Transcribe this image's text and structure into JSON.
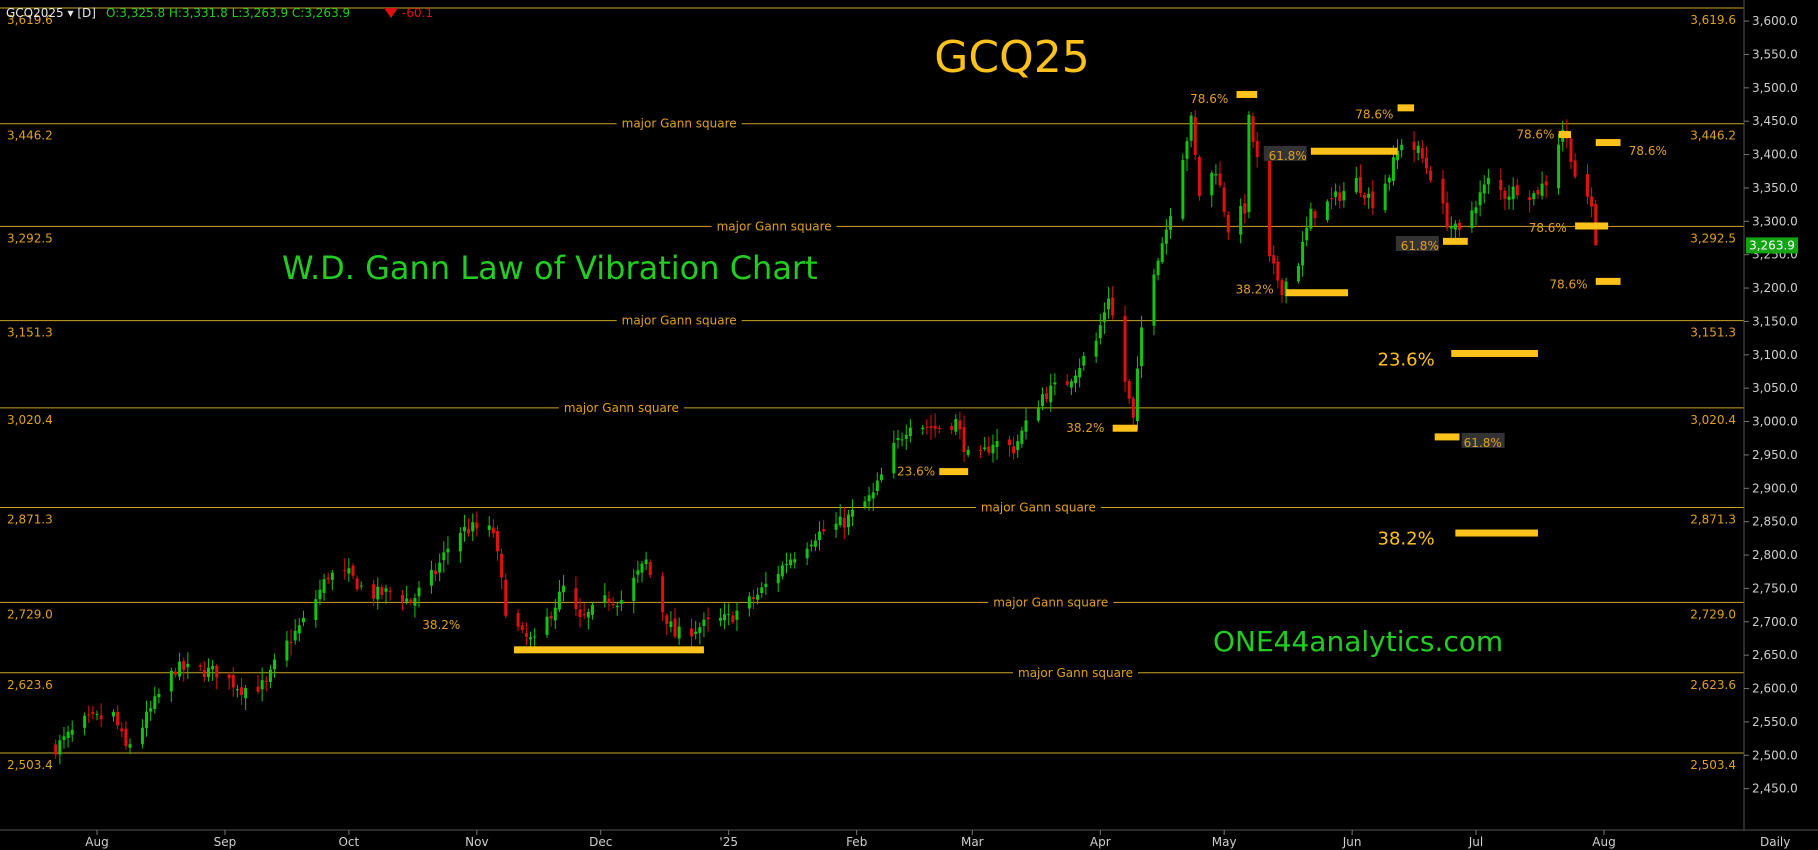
{
  "header": {
    "symbol": "GCQ2025 ▾ [D]",
    "ohlc": "O:3,325.8 H:3,331.8 L:3,263.9 C:3,263.9",
    "change": "-60.1"
  },
  "colors": {
    "background": "#000000",
    "up": "#13c313",
    "down": "#e01010",
    "level_line": "#c9a227",
    "annotation": "#ffc21a",
    "fib_text": "#e0a020",
    "green_text": "#22cc22",
    "axis_text": "#cfcfcf",
    "price_tag": "#13a313"
  },
  "chart_data": {
    "type": "candlestick",
    "title": "GCQ25",
    "subtitle": "W.D. Gann Law of Vibration Chart",
    "watermark": "ONE44analytics.com",
    "interval_label": "Daily",
    "ylim": [
      2410,
      3630
    ],
    "y_ticks": [
      2450,
      2500,
      2550,
      2600,
      2650,
      2700,
      2750,
      2800,
      2850,
      2900,
      2950,
      3000,
      3050,
      3100,
      3150,
      3200,
      3250,
      3300,
      3350,
      3400,
      3450,
      3500,
      3550,
      3600
    ],
    "x_range": [
      "2024-07-22",
      "2025-08-26"
    ],
    "x_ticks": [
      {
        "label": "Aug",
        "date": "2024-08-01"
      },
      {
        "label": "Sep",
        "date": "2024-09-01"
      },
      {
        "label": "Oct",
        "date": "2024-10-01"
      },
      {
        "label": "Nov",
        "date": "2024-11-01"
      },
      {
        "label": "Dec",
        "date": "2024-12-01"
      },
      {
        "label": "'25",
        "date": "2025-01-01"
      },
      {
        "label": "Feb",
        "date": "2025-02-01"
      },
      {
        "label": "Mar",
        "date": "2025-03-01"
      },
      {
        "label": "Apr",
        "date": "2025-04-01"
      },
      {
        "label": "May",
        "date": "2025-05-01"
      },
      {
        "label": "Jun",
        "date": "2025-06-01"
      },
      {
        "label": "Jul",
        "date": "2025-07-01"
      },
      {
        "label": "Aug",
        "date": "2025-08-01"
      }
    ],
    "last_price_tag": {
      "value": 3263.9,
      "label": "3,263.9"
    },
    "levels": [
      {
        "value": 3619.6,
        "label": "3,619.6",
        "name": ""
      },
      {
        "value": 3446.2,
        "label": "3,446.2",
        "name": "major Gann square",
        "name_date": "2024-12-20"
      },
      {
        "value": 3292.5,
        "label": "3,292.5",
        "name": "major Gann square",
        "name_date": "2025-01-12"
      },
      {
        "value": 3151.3,
        "label": "3,151.3",
        "name": "major Gann square",
        "name_date": "2024-12-20"
      },
      {
        "value": 3020.4,
        "label": "3,020.4",
        "name": "major Gann square",
        "name_date": "2024-12-06"
      },
      {
        "value": 2871.3,
        "label": "2,871.3",
        "name": "major Gann square",
        "name_date": "2025-03-17"
      },
      {
        "value": 2729.0,
        "label": "2,729.0",
        "name": "major Gann square",
        "name_date": "2025-03-20"
      },
      {
        "value": 2623.6,
        "label": "2,623.6",
        "name": "major Gann square",
        "name_date": "2025-03-26"
      },
      {
        "value": 2503.4,
        "label": "2,503.4",
        "name": ""
      }
    ],
    "fib_markers": [
      {
        "label": "38.2%",
        "x1": "2024-11-10",
        "x2": "2024-12-26",
        "y": 2658,
        "label_date": "2024-10-28",
        "label_y": 2695,
        "label_side": "left",
        "big": false
      },
      {
        "label": "23.6%",
        "x1": "2025-02-21",
        "x2": "2025-02-28",
        "y": 2925,
        "label_date": "2025-02-20",
        "label_y": 2925,
        "label_side": "left",
        "big": false
      },
      {
        "label": "38.2%",
        "x1": "2025-04-04",
        "x2": "2025-04-10",
        "y": 2990,
        "label_date": "2025-04-02",
        "label_y": 2990,
        "label_side": "left",
        "big": false
      },
      {
        "label": "38.2%",
        "x1": "2025-05-16",
        "x2": "2025-05-31",
        "y": 3193,
        "label_date": "2025-05-13",
        "label_y": 3198,
        "label_side": "left",
        "big": false
      },
      {
        "label": "78.6%",
        "x1": "2025-05-04",
        "x2": "2025-05-09",
        "y": 3490,
        "label_date": "2025-05-02",
        "label_y": 3483,
        "label_side": "left",
        "big": false
      },
      {
        "label": "61.8%",
        "x1": "2025-05-22",
        "x2": "2025-06-12",
        "y": 3405,
        "label_date": "2025-05-21",
        "label_y": 3398,
        "label_side": "left",
        "big": false,
        "boxed": true
      },
      {
        "label": "78.6%",
        "x1": "2025-06-12",
        "x2": "2025-06-16",
        "y": 3470,
        "label_date": "2025-06-11",
        "label_y": 3460,
        "label_side": "left",
        "big": false
      },
      {
        "label": "61.8%",
        "x1": "2025-06-23",
        "x2": "2025-06-29",
        "y": 3270,
        "label_date": "2025-06-22",
        "label_y": 3263,
        "label_side": "left",
        "big": false,
        "boxed": true
      },
      {
        "label": "78.6%",
        "x1": "2025-07-21",
        "x2": "2025-07-24",
        "y": 3430,
        "label_date": "2025-07-20",
        "label_y": 3430,
        "label_side": "left",
        "big": false
      },
      {
        "label": "78.6%",
        "x1": "2025-07-25",
        "x2": "2025-08-02",
        "y": 3293,
        "label_date": "2025-07-23",
        "label_y": 3290,
        "label_side": "left",
        "big": false
      },
      {
        "label": "78.6%",
        "x1": "2025-07-30",
        "x2": "2025-08-05",
        "y": 3418,
        "label_date": "2025-08-07",
        "label_y": 3405,
        "label_side": "right",
        "big": false
      },
      {
        "label": "78.6%",
        "x1": "2025-07-30",
        "x2": "2025-08-05",
        "y": 3210,
        "label_date": "2025-07-28",
        "label_y": 3205,
        "label_side": "left",
        "big": false
      },
      {
        "label": "23.6%",
        "x1": "2025-06-25",
        "x2": "2025-07-16",
        "y": 3102,
        "label_date": "2025-06-21",
        "label_y": 3090,
        "label_side": "left",
        "big": true
      },
      {
        "label": "61.8%",
        "x1": "2025-06-21",
        "x2": "2025-06-27",
        "y": 2977,
        "label_date": "2025-06-28",
        "label_y": 2968,
        "label_side": "right",
        "big": false,
        "boxed": true
      },
      {
        "label": "38.2%",
        "x1": "2025-06-26",
        "x2": "2025-07-16",
        "y": 2833,
        "label_date": "2025-06-21",
        "label_y": 2822,
        "label_side": "left",
        "big": true
      }
    ],
    "series_shape": [
      [
        "2024-07-22",
        2512
      ],
      [
        "2024-07-29",
        2550
      ],
      [
        "2024-08-05",
        2560
      ],
      [
        "2024-08-08",
        2510
      ],
      [
        "2024-08-12",
        2545
      ],
      [
        "2024-08-16",
        2590
      ],
      [
        "2024-08-20",
        2630
      ],
      [
        "2024-08-30",
        2625
      ],
      [
        "2024-09-05",
        2600
      ],
      [
        "2024-09-11",
        2605
      ],
      [
        "2024-09-14",
        2650
      ],
      [
        "2024-09-20",
        2700
      ],
      [
        "2024-09-26",
        2770
      ],
      [
        "2024-10-01",
        2770
      ],
      [
        "2024-10-06",
        2740
      ],
      [
        "2024-10-12",
        2745
      ],
      [
        "2024-10-16",
        2730
      ],
      [
        "2024-10-22",
        2775
      ],
      [
        "2024-10-27",
        2835
      ],
      [
        "2024-10-31",
        2840
      ],
      [
        "2024-11-05",
        2835
      ],
      [
        "2024-11-08",
        2720
      ],
      [
        "2024-11-12",
        2678
      ],
      [
        "2024-11-15",
        2668
      ],
      [
        "2024-11-22",
        2750
      ],
      [
        "2024-11-26",
        2700
      ],
      [
        "2024-12-03",
        2735
      ],
      [
        "2024-12-06",
        2733
      ],
      [
        "2024-12-12",
        2790
      ],
      [
        "2024-12-15",
        2730
      ],
      [
        "2024-12-19",
        2680
      ],
      [
        "2024-12-26",
        2695
      ],
      [
        "2025-01-01",
        2705
      ],
      [
        "2025-01-08",
        2740
      ],
      [
        "2025-01-15",
        2790
      ],
      [
        "2025-01-22",
        2830
      ],
      [
        "2025-01-29",
        2850
      ],
      [
        "2025-02-05",
        2890
      ],
      [
        "2025-02-10",
        2960
      ],
      [
        "2025-02-14",
        3000
      ],
      [
        "2025-02-20",
        2990
      ],
      [
        "2025-02-25",
        3000
      ],
      [
        "2025-03-01",
        2930
      ],
      [
        "2025-03-06",
        2970
      ],
      [
        "2025-03-11",
        2960
      ],
      [
        "2025-03-18",
        3040
      ],
      [
        "2025-03-24",
        3060
      ],
      [
        "2025-03-31",
        3120
      ],
      [
        "2025-04-03",
        3190
      ],
      [
        "2025-04-07",
        3060
      ],
      [
        "2025-04-09",
        3000
      ],
      [
        "2025-04-11",
        3140
      ],
      [
        "2025-04-14",
        3230
      ],
      [
        "2025-04-17",
        3290
      ],
      [
        "2025-04-21",
        3400
      ],
      [
        "2025-04-23",
        3450
      ],
      [
        "2025-04-25",
        3340
      ],
      [
        "2025-04-29",
        3380
      ],
      [
        "2025-05-02",
        3290
      ],
      [
        "2025-05-06",
        3320
      ],
      [
        "2025-05-07",
        3450
      ],
      [
        "2025-05-09",
        3390
      ],
      [
        "2025-05-12",
        3240
      ],
      [
        "2025-05-15",
        3200
      ],
      [
        "2025-05-19",
        3240
      ],
      [
        "2025-05-22",
        3310
      ],
      [
        "2025-05-27",
        3330
      ],
      [
        "2025-06-02",
        3360
      ],
      [
        "2025-06-06",
        3330
      ],
      [
        "2025-06-10",
        3370
      ],
      [
        "2025-06-13",
        3420
      ],
      [
        "2025-06-17",
        3405
      ],
      [
        "2025-06-20",
        3370
      ],
      [
        "2025-06-24",
        3300
      ],
      [
        "2025-06-27",
        3280
      ],
      [
        "2025-07-01",
        3330
      ],
      [
        "2025-07-04",
        3360
      ],
      [
        "2025-07-08",
        3340
      ],
      [
        "2025-07-11",
        3350
      ],
      [
        "2025-07-15",
        3340
      ],
      [
        "2025-07-18",
        3360
      ],
      [
        "2025-07-22",
        3440
      ],
      [
        "2025-07-24",
        3400
      ],
      [
        "2025-07-26",
        3340
      ],
      [
        "2025-07-29",
        3320
      ],
      [
        "2025-07-30",
        3264
      ]
    ],
    "last": {
      "open": 3325.8,
      "high": 3331.8,
      "low": 3263.9,
      "close": 3263.9
    }
  }
}
